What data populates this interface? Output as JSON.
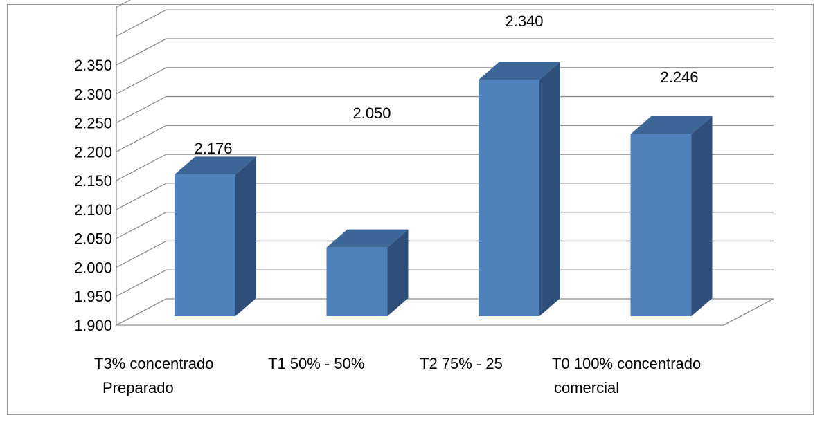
{
  "chart_data": {
    "type": "bar",
    "categories": [
      [
        "T3% concentrado",
        "Preparado"
      ],
      [
        "T1 50% - 50%"
      ],
      [
        "T2 75% - 25"
      ],
      [
        "T0 100% concentrado",
        "comercial"
      ]
    ],
    "values": [
      2.176,
      2.05,
      2.34,
      2.246
    ],
    "data_labels": [
      "2.176",
      "2.050",
      "2.340",
      "2.246"
    ],
    "ylim": [
      1.9,
      2.35
    ],
    "yticks": [
      "1.900",
      "1.950",
      "2.000",
      "2.050",
      "2.100",
      "2.150",
      "2.200",
      "2.250",
      "2.300",
      "2.350"
    ],
    "three_d": true,
    "grid": true,
    "legend": "none",
    "colors": {
      "bar_front": "#4f81bd",
      "bar_side": "#2f4f7a",
      "bar_top": "#3c6598",
      "grid": "#8c8c8c"
    }
  }
}
